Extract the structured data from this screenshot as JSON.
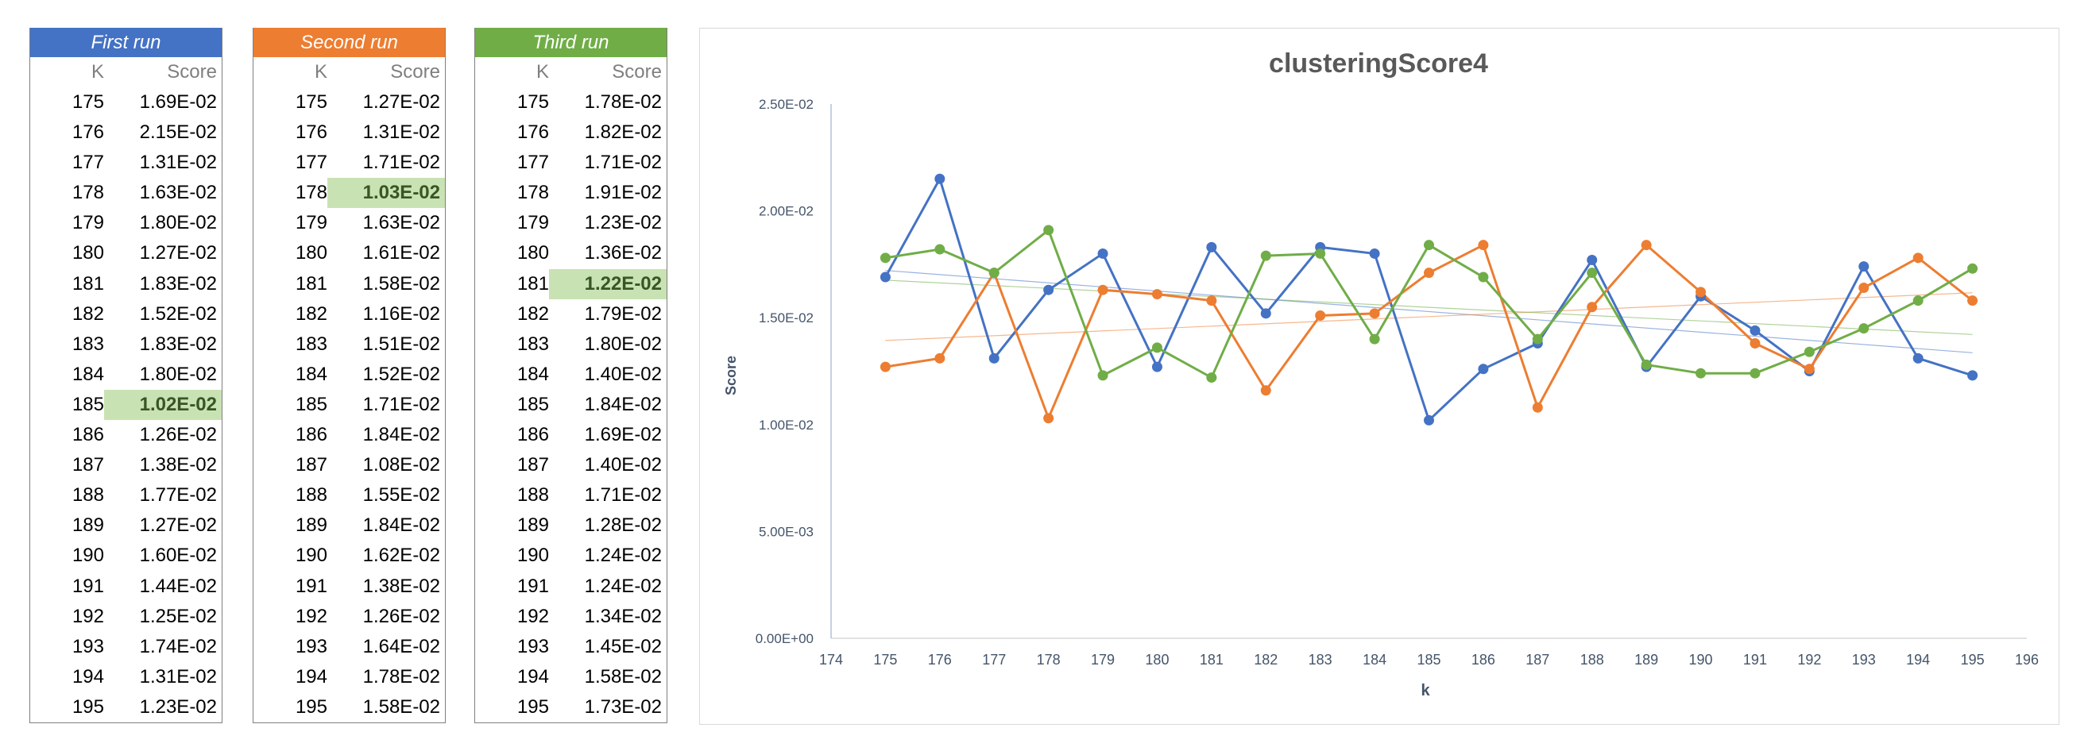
{
  "tables": [
    {
      "title": "First run",
      "color": "#4472c4",
      "col_k": "K",
      "col_score": "Score",
      "rows": [
        [
          "175",
          "1.69E-02"
        ],
        [
          "176",
          "2.15E-02"
        ],
        [
          "177",
          "1.31E-02"
        ],
        [
          "178",
          "1.63E-02"
        ],
        [
          "179",
          "1.80E-02"
        ],
        [
          "180",
          "1.27E-02"
        ],
        [
          "181",
          "1.83E-02"
        ],
        [
          "182",
          "1.52E-02"
        ],
        [
          "183",
          "1.83E-02"
        ],
        [
          "184",
          "1.80E-02"
        ],
        [
          "185",
          "1.02E-02"
        ],
        [
          "186",
          "1.26E-02"
        ],
        [
          "187",
          "1.38E-02"
        ],
        [
          "188",
          "1.77E-02"
        ],
        [
          "189",
          "1.27E-02"
        ],
        [
          "190",
          "1.60E-02"
        ],
        [
          "191",
          "1.44E-02"
        ],
        [
          "192",
          "1.25E-02"
        ],
        [
          "193",
          "1.74E-02"
        ],
        [
          "194",
          "1.31E-02"
        ],
        [
          "195",
          "1.23E-02"
        ]
      ],
      "highlight_k": "185"
    },
    {
      "title": "Second run",
      "color": "#ed7d31",
      "col_k": "K",
      "col_score": "Score",
      "rows": [
        [
          "175",
          "1.27E-02"
        ],
        [
          "176",
          "1.31E-02"
        ],
        [
          "177",
          "1.71E-02"
        ],
        [
          "178",
          "1.03E-02"
        ],
        [
          "179",
          "1.63E-02"
        ],
        [
          "180",
          "1.61E-02"
        ],
        [
          "181",
          "1.58E-02"
        ],
        [
          "182",
          "1.16E-02"
        ],
        [
          "183",
          "1.51E-02"
        ],
        [
          "184",
          "1.52E-02"
        ],
        [
          "185",
          "1.71E-02"
        ],
        [
          "186",
          "1.84E-02"
        ],
        [
          "187",
          "1.08E-02"
        ],
        [
          "188",
          "1.55E-02"
        ],
        [
          "189",
          "1.84E-02"
        ],
        [
          "190",
          "1.62E-02"
        ],
        [
          "191",
          "1.38E-02"
        ],
        [
          "192",
          "1.26E-02"
        ],
        [
          "193",
          "1.64E-02"
        ],
        [
          "194",
          "1.78E-02"
        ],
        [
          "195",
          "1.58E-02"
        ]
      ],
      "highlight_k": "178"
    },
    {
      "title": "Third run",
      "color": "#70ad47",
      "col_k": "K",
      "col_score": "Score",
      "rows": [
        [
          "175",
          "1.78E-02"
        ],
        [
          "176",
          "1.82E-02"
        ],
        [
          "177",
          "1.71E-02"
        ],
        [
          "178",
          "1.91E-02"
        ],
        [
          "179",
          "1.23E-02"
        ],
        [
          "180",
          "1.36E-02"
        ],
        [
          "181",
          "1.22E-02"
        ],
        [
          "182",
          "1.79E-02"
        ],
        [
          "183",
          "1.80E-02"
        ],
        [
          "184",
          "1.40E-02"
        ],
        [
          "185",
          "1.84E-02"
        ],
        [
          "186",
          "1.69E-02"
        ],
        [
          "187",
          "1.40E-02"
        ],
        [
          "188",
          "1.71E-02"
        ],
        [
          "189",
          "1.28E-02"
        ],
        [
          "190",
          "1.24E-02"
        ],
        [
          "191",
          "1.24E-02"
        ],
        [
          "192",
          "1.34E-02"
        ],
        [
          "193",
          "1.45E-02"
        ],
        [
          "194",
          "1.58E-02"
        ],
        [
          "195",
          "1.73E-02"
        ]
      ],
      "highlight_k": "181"
    }
  ],
  "chart_data": {
    "type": "line",
    "title": "clusteringScore4",
    "xlabel": "k",
    "ylabel": "Score",
    "xlim": [
      174,
      196
    ],
    "ylim": [
      0,
      0.025
    ],
    "x_ticks": [
      174,
      175,
      176,
      177,
      178,
      179,
      180,
      181,
      182,
      183,
      184,
      185,
      186,
      187,
      188,
      189,
      190,
      191,
      192,
      193,
      194,
      195,
      196
    ],
    "y_ticks": [
      0,
      0.005,
      0.01,
      0.015,
      0.02,
      0.025
    ],
    "y_tick_labels": [
      "0.00E+00",
      "5.00E-03",
      "1.00E-02",
      "1.50E-02",
      "2.00E-02",
      "2.50E-02"
    ],
    "x": [
      175,
      176,
      177,
      178,
      179,
      180,
      181,
      182,
      183,
      184,
      185,
      186,
      187,
      188,
      189,
      190,
      191,
      192,
      193,
      194,
      195
    ],
    "series": [
      {
        "color": "#4472c4",
        "values": [
          0.0169,
          0.0215,
          0.0131,
          0.0163,
          0.018,
          0.0127,
          0.0183,
          0.0152,
          0.0183,
          0.018,
          0.0102,
          0.0126,
          0.0138,
          0.0177,
          0.0127,
          0.016,
          0.0144,
          0.0125,
          0.0174,
          0.0131,
          0.0123
        ],
        "trendline": true
      },
      {
        "color": "#ed7d31",
        "values": [
          0.0127,
          0.0131,
          0.0171,
          0.0103,
          0.0163,
          0.0161,
          0.0158,
          0.0116,
          0.0151,
          0.0152,
          0.0171,
          0.0184,
          0.0108,
          0.0155,
          0.0184,
          0.0162,
          0.0138,
          0.0126,
          0.0164,
          0.0178,
          0.0158
        ],
        "trendline": true
      },
      {
        "color": "#70ad47",
        "values": [
          0.0178,
          0.0182,
          0.0171,
          0.0191,
          0.0123,
          0.0136,
          0.0122,
          0.0179,
          0.018,
          0.014,
          0.0184,
          0.0169,
          0.014,
          0.0171,
          0.0128,
          0.0124,
          0.0124,
          0.0134,
          0.0145,
          0.0158,
          0.0173
        ],
        "trendline": true
      }
    ],
    "grid": false,
    "legend": "none"
  }
}
